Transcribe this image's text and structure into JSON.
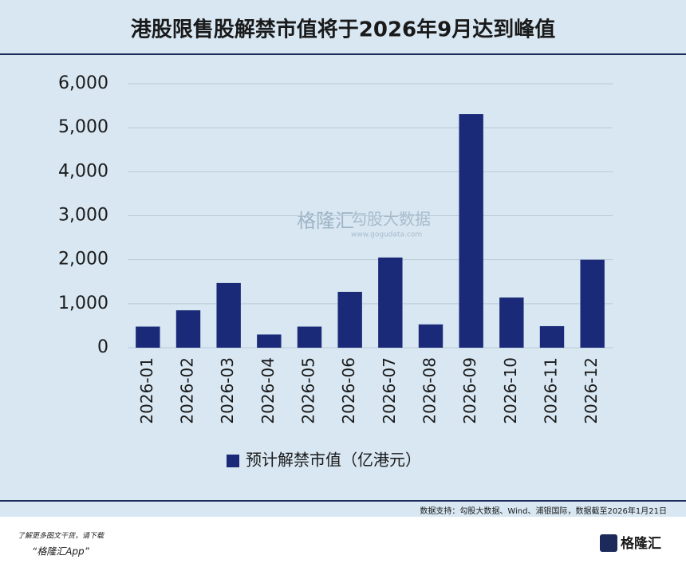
{
  "chart_data": {
    "type": "bar",
    "title": "港股限售股解禁市值将于2026年9月达到峰值",
    "categories": [
      "2026-01",
      "2026-02",
      "2026-03",
      "2026-04",
      "2026-05",
      "2026-06",
      "2026-07",
      "2026-08",
      "2026-09",
      "2026-10",
      "2026-11",
      "2026-12"
    ],
    "series": [
      {
        "name": "预计解禁市值（亿港元）",
        "color": "#1b2a78",
        "values": [
          480,
          850,
          1470,
          300,
          480,
          1270,
          2050,
          530,
          5310,
          1140,
          490,
          2000
        ]
      }
    ],
    "ylim": [
      0,
      6000
    ],
    "yticks": [
      0,
      {
        "value": 1000,
        "label": "1,000"
      },
      {
        "value": 2000,
        "label": "2,000"
      },
      {
        "value": 3000,
        "label": "3,000"
      },
      {
        "value": 4000,
        "label": "4,000"
      },
      {
        "value": 5000,
        "label": "5,000"
      },
      {
        "value": 6000,
        "label": "6,000"
      }
    ],
    "grid": true,
    "legend": "bottom"
  },
  "watermark": {
    "brand": "格隆汇",
    "product": "勾股大数据",
    "url": "www.gogudata.com"
  },
  "source": "数据支持：勾股大数据、Wind、浦银国际，数据截至2026年1月21日",
  "footer": {
    "note": "了解更多图文干货，请下载",
    "app": "“格隆汇App”",
    "logo": "格隆汇"
  }
}
